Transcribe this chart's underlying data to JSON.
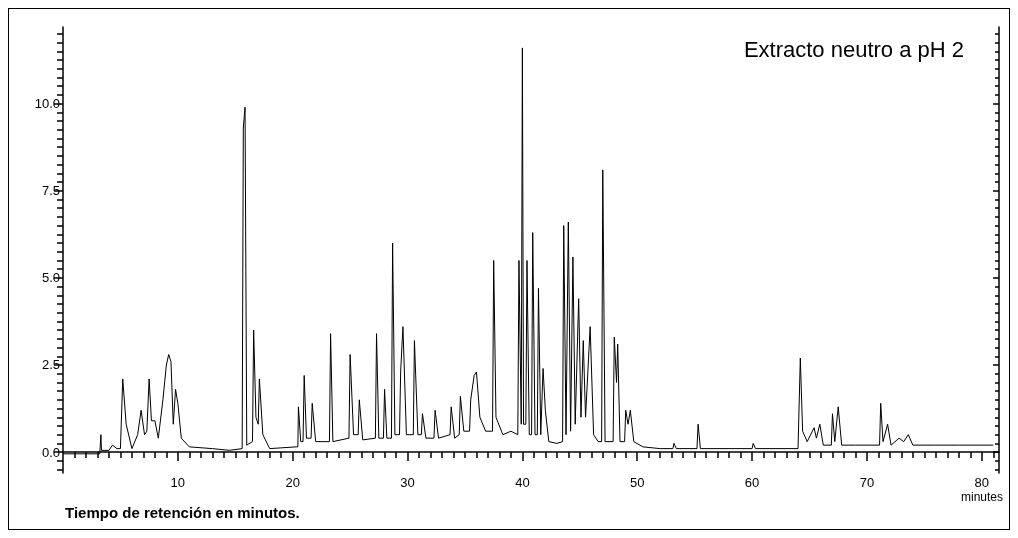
{
  "chart_data": {
    "type": "line",
    "title": "Extracto neutro a pH 2",
    "xlabel": "minutes",
    "annotations": [
      "Tiempo de retención en minutos."
    ],
    "grid": false,
    "xlim": [
      0,
      81.5
    ],
    "ylim": [
      -0.6,
      12.2
    ],
    "xticks": [
      {
        "value": 1,
        "label": null
      },
      {
        "value": 2,
        "label": null
      },
      {
        "value": 3,
        "label": null
      },
      {
        "value": 4,
        "label": null
      },
      {
        "value": 5,
        "label": null
      },
      {
        "value": 6,
        "label": null
      },
      {
        "value": 7,
        "label": null
      },
      {
        "value": 8,
        "label": null
      },
      {
        "value": 9,
        "label": null
      },
      10,
      {
        "value": 11,
        "label": null
      },
      {
        "value": 12,
        "label": null
      },
      {
        "value": 13,
        "label": null
      },
      {
        "value": 14,
        "label": null
      },
      {
        "value": 15,
        "label": null
      },
      {
        "value": 16,
        "label": null
      },
      {
        "value": 17,
        "label": null
      },
      {
        "value": 18,
        "label": null
      },
      {
        "value": 19,
        "label": null
      },
      20,
      {
        "value": 21,
        "label": null
      },
      {
        "value": 22,
        "label": null
      },
      {
        "value": 23,
        "label": null
      },
      {
        "value": 24,
        "label": null
      },
      {
        "value": 25,
        "label": null
      },
      {
        "value": 26,
        "label": null
      },
      {
        "value": 27,
        "label": null
      },
      {
        "value": 28,
        "label": null
      },
      {
        "value": 29,
        "label": null
      },
      30,
      {
        "value": 31,
        "label": null
      },
      {
        "value": 32,
        "label": null
      },
      {
        "value": 33,
        "label": null
      },
      {
        "value": 34,
        "label": null
      },
      {
        "value": 35,
        "label": null
      },
      {
        "value": 36,
        "label": null
      },
      {
        "value": 37,
        "label": null
      },
      {
        "value": 38,
        "label": null
      },
      {
        "value": 39,
        "label": null
      },
      40,
      {
        "value": 41,
        "label": null
      },
      {
        "value": 42,
        "label": null
      },
      {
        "value": 43,
        "label": null
      },
      {
        "value": 44,
        "label": null
      },
      {
        "value": 45,
        "label": null
      },
      {
        "value": 46,
        "label": null
      },
      {
        "value": 47,
        "label": null
      },
      {
        "value": 48,
        "label": null
      },
      {
        "value": 49,
        "label": null
      },
      50,
      {
        "value": 51,
        "label": null
      },
      {
        "value": 52,
        "label": null
      },
      {
        "value": 53,
        "label": null
      },
      {
        "value": 54,
        "label": null
      },
      {
        "value": 55,
        "label": null
      },
      {
        "value": 56,
        "label": null
      },
      {
        "value": 57,
        "label": null
      },
      {
        "value": 58,
        "label": null
      },
      {
        "value": 59,
        "label": null
      },
      60,
      {
        "value": 61,
        "label": null
      },
      {
        "value": 62,
        "label": null
      },
      {
        "value": 63,
        "label": null
      },
      {
        "value": 64,
        "label": null
      },
      {
        "value": 65,
        "label": null
      },
      {
        "value": 66,
        "label": null
      },
      {
        "value": 67,
        "label": null
      },
      {
        "value": 68,
        "label": null
      },
      {
        "value": 69,
        "label": null
      },
      70,
      {
        "value": 71,
        "label": null
      },
      {
        "value": 72,
        "label": null
      },
      {
        "value": 73,
        "label": null
      },
      {
        "value": 74,
        "label": null
      },
      {
        "value": 75,
        "label": null
      },
      {
        "value": 76,
        "label": null
      },
      {
        "value": 77,
        "label": null
      },
      {
        "value": 78,
        "label": null
      },
      {
        "value": 79,
        "label": null
      },
      80,
      {
        "value": 81,
        "label": null
      }
    ],
    "yticks": [
      {
        "value": -0.5,
        "label": null
      },
      {
        "value": -0.25,
        "label": null
      },
      {
        "value": 0,
        "label": "0.0"
      },
      {
        "value": 0.25,
        "label": null
      },
      {
        "value": 0.5,
        "label": null
      },
      {
        "value": 0.75,
        "label": null
      },
      {
        "value": 1,
        "label": null
      },
      {
        "value": 1.25,
        "label": null
      },
      {
        "value": 1.5,
        "label": null
      },
      {
        "value": 1.75,
        "label": null
      },
      {
        "value": 2,
        "label": null
      },
      {
        "value": 2.25,
        "label": null
      },
      {
        "value": 2.5,
        "label": "2.5"
      },
      {
        "value": 2.75,
        "label": null
      },
      {
        "value": 3,
        "label": null
      },
      {
        "value": 3.25,
        "label": null
      },
      {
        "value": 3.5,
        "label": null
      },
      {
        "value": 3.75,
        "label": null
      },
      {
        "value": 4,
        "label": null
      },
      {
        "value": 4.25,
        "label": null
      },
      {
        "value": 4.5,
        "label": null
      },
      {
        "value": 4.75,
        "label": null
      },
      {
        "value": 5,
        "label": "5.0"
      },
      {
        "value": 5.25,
        "label": null
      },
      {
        "value": 5.5,
        "label": null
      },
      {
        "value": 5.75,
        "label": null
      },
      {
        "value": 6,
        "label": null
      },
      {
        "value": 6.25,
        "label": null
      },
      {
        "value": 6.5,
        "label": null
      },
      {
        "value": 6.75,
        "label": null
      },
      {
        "value": 7,
        "label": null
      },
      {
        "value": 7.25,
        "label": null
      },
      {
        "value": 7.5,
        "label": "7.5"
      },
      {
        "value": 7.75,
        "label": null
      },
      {
        "value": 8,
        "label": null
      },
      {
        "value": 8.25,
        "label": null
      },
      {
        "value": 8.5,
        "label": null
      },
      {
        "value": 8.75,
        "label": null
      },
      {
        "value": 9,
        "label": null
      },
      {
        "value": 9.25,
        "label": null
      },
      {
        "value": 9.5,
        "label": null
      },
      {
        "value": 9.75,
        "label": null
      },
      {
        "value": 10,
        "label": "10.0"
      },
      {
        "value": 10.25,
        "label": null
      },
      {
        "value": 10.5,
        "label": null
      },
      {
        "value": 10.75,
        "label": null
      },
      {
        "value": 11,
        "label": null
      },
      {
        "value": 11.25,
        "label": null
      },
      {
        "value": 11.5,
        "label": null
      },
      {
        "value": 11.75,
        "label": null
      },
      {
        "value": 12,
        "label": null
      }
    ],
    "series": [
      {
        "color": "#000000",
        "x": [
          0,
          3.2,
          3.3,
          3.35,
          4.0,
          4.3,
          4.7,
          5.0,
          5.2,
          5.5,
          6.0,
          6.5,
          6.8,
          7.1,
          7.3,
          7.5,
          7.7,
          8.0,
          8.3,
          8.7,
          9.0,
          9.2,
          9.4,
          9.6,
          9.8,
          10.0,
          10.3,
          11.0,
          13,
          14.5,
          15.6,
          15.7,
          15.85,
          16.0,
          16.5,
          16.6,
          16.8,
          17.0,
          17.1,
          17.4,
          18,
          20.3,
          20.45,
          20.5,
          20.7,
          20.9,
          21.0,
          21.2,
          21.6,
          21.7,
          22.0,
          23.2,
          23.3,
          23.5,
          24.9,
          25.0,
          25.3,
          25.7,
          25.8,
          26.1,
          27.2,
          27.3,
          27.5,
          27.9,
          28.0,
          28.2,
          28.6,
          28.7,
          28.9,
          29.3,
          29.4,
          29.6,
          29.9,
          30.5,
          30.6,
          30.9,
          31.2,
          31.3,
          31.6,
          32.3,
          32.4,
          32.7,
          33.7,
          33.8,
          34.1,
          34.5,
          34.6,
          34.9,
          35.4,
          35.5,
          35.8,
          36.0,
          36.3,
          36.8,
          37.4,
          37.5,
          37.7,
          38.3,
          39.0,
          39.6,
          39.7,
          39.9,
          40.0,
          40.1,
          40.3,
          40.4,
          40.6,
          40.8,
          40.9,
          41.1,
          41.3,
          41.4,
          41.6,
          41.8,
          42.0,
          42.3,
          43.0,
          43.5,
          43.6,
          43.8,
          44.0,
          44.2,
          44.4,
          44.6,
          44.9,
          45.1,
          45.3,
          45.5,
          45.9,
          46.2,
          46.6,
          46.9,
          47.0,
          47.2,
          47.9,
          48.0,
          48.2,
          48.3,
          48.5,
          48.9,
          49.0,
          49.2,
          49.4,
          49.7,
          50.5,
          52,
          53.1,
          53.2,
          53.4,
          55.2,
          55.3,
          55.5,
          58,
          60.0,
          60.1,
          60.3,
          62,
          64.0,
          64.2,
          64.4,
          64.8,
          65.4,
          65.6,
          65.9,
          66.2,
          66.9,
          67.0,
          67.2,
          67.5,
          67.8,
          69,
          71.1,
          71.2,
          71.4,
          71.8,
          72.1,
          72.8,
          73.2,
          73.6,
          74,
          76,
          78,
          81
        ],
        "values": [
          -0.05,
          -0.05,
          0.5,
          0.05,
          0.05,
          0.2,
          0.1,
          0.1,
          2.1,
          0.8,
          0.1,
          0.5,
          1.2,
          0.5,
          0.6,
          2.1,
          0.9,
          0.9,
          0.4,
          1.5,
          2.5,
          2.8,
          2.6,
          0.8,
          1.8,
          1.4,
          0.4,
          0.15,
          0.1,
          0.05,
          0.1,
          9.3,
          9.9,
          0.2,
          0.3,
          3.5,
          1.0,
          0.8,
          2.1,
          0.5,
          0.1,
          0.15,
          0.15,
          1.3,
          0.3,
          0.3,
          2.2,
          0.4,
          0.4,
          1.4,
          0.3,
          0.3,
          3.4,
          0.3,
          0.4,
          2.8,
          0.5,
          0.5,
          1.5,
          0.35,
          0.4,
          3.4,
          0.4,
          0.4,
          1.8,
          0.4,
          0.4,
          6.0,
          0.5,
          0.5,
          2.3,
          3.6,
          0.5,
          0.5,
          3.2,
          0.5,
          0.5,
          1.1,
          0.4,
          0.4,
          1.2,
          0.4,
          0.5,
          1.3,
          0.4,
          0.5,
          1.6,
          0.6,
          0.6,
          1.5,
          2.2,
          2.3,
          1.0,
          0.6,
          0.6,
          5.5,
          1.0,
          0.5,
          0.6,
          0.5,
          5.5,
          0.8,
          11.6,
          0.8,
          0.8,
          5.5,
          0.5,
          0.5,
          6.3,
          0.5,
          0.5,
          4.7,
          0.5,
          2.4,
          1.2,
          0.3,
          0.25,
          0.3,
          6.5,
          0.5,
          6.6,
          0.6,
          5.6,
          0.8,
          4.4,
          1.0,
          3.2,
          1.0,
          3.6,
          0.5,
          0.3,
          0.3,
          8.1,
          0.3,
          0.3,
          3.3,
          2.0,
          3.1,
          0.3,
          0.3,
          1.2,
          0.8,
          1.2,
          0.3,
          0.15,
          0.1,
          0.1,
          0.25,
          0.1,
          0.1,
          0.8,
          0.1,
          0.1,
          0.1,
          0.25,
          0.1,
          0.1,
          0.1,
          2.7,
          0.6,
          0.3,
          0.7,
          0.4,
          0.8,
          0.2,
          0.2,
          1.1,
          0.3,
          1.3,
          0.2,
          0.2,
          0.2,
          1.4,
          0.3,
          0.8,
          0.2,
          0.4,
          0.3,
          0.5,
          0.2,
          0.2,
          0.2,
          0.2
        ]
      }
    ]
  }
}
